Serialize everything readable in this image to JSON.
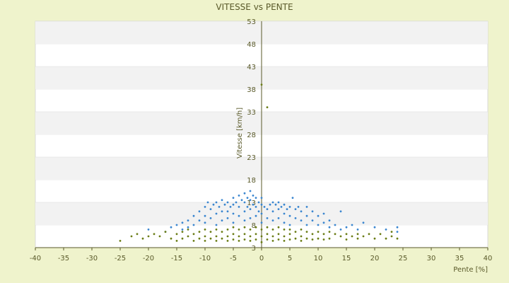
{
  "chart_data": {
    "type": "scatter",
    "title": "VITESSE vs PENTE",
    "xlabel": "Pente [%]",
    "ylabel": "Vitesse [km/h]",
    "xlim": [
      -40,
      40
    ],
    "ylim": [
      3,
      53
    ],
    "x_ticks": [
      "-40",
      "-35",
      "-30",
      "-25",
      "-20",
      "-15",
      "-10",
      "-5",
      "0",
      "5",
      "10",
      "15",
      "20",
      "25",
      "30",
      "35",
      "40"
    ],
    "y_ticks": [
      "3",
      "8",
      "13",
      "18",
      "23",
      "28",
      "33",
      "38",
      "43",
      "48",
      "53"
    ],
    "grid": "horizontal bands",
    "legend": "none",
    "colors": {
      "series_blue": "#3a86d0",
      "series_olive": "#6b7d16",
      "band": "#f2f2f2",
      "plot_bg": "#ffffff",
      "page_bg": "#eff3cc",
      "axis": "#5a5a2a"
    },
    "series": [
      {
        "color": "#3a86d0",
        "points": [
          [
            -20,
            7
          ],
          [
            -17,
            6.5
          ],
          [
            -16,
            7.5
          ],
          [
            -15,
            8
          ],
          [
            -14,
            8.5
          ],
          [
            -14,
            7
          ],
          [
            -13,
            9
          ],
          [
            -13,
            7.5
          ],
          [
            -12,
            10
          ],
          [
            -12,
            8
          ],
          [
            -11,
            11
          ],
          [
            -11,
            9
          ],
          [
            -10,
            12
          ],
          [
            -10,
            10
          ],
          [
            -10,
            8.5
          ],
          [
            -9.5,
            13
          ],
          [
            -9,
            11.5
          ],
          [
            -9,
            9.5
          ],
          [
            -8.5,
            12.5
          ],
          [
            -8,
            13
          ],
          [
            -8,
            10.5
          ],
          [
            -8,
            8
          ],
          [
            -7.5,
            12
          ],
          [
            -7,
            13.5
          ],
          [
            -7,
            11
          ],
          [
            -7,
            9
          ],
          [
            -6.5,
            12.5
          ],
          [
            -6,
            13
          ],
          [
            -6,
            11
          ],
          [
            -6,
            9.5
          ],
          [
            -5.5,
            12
          ],
          [
            -5,
            14
          ],
          [
            -5,
            12.5
          ],
          [
            -5,
            10.5
          ],
          [
            -5,
            8.5
          ],
          [
            -4.5,
            13
          ],
          [
            -4,
            14.5
          ],
          [
            -4,
            12
          ],
          [
            -4,
            10
          ],
          [
            -3.5,
            13.5
          ],
          [
            -3,
            15
          ],
          [
            -3,
            13
          ],
          [
            -3,
            11
          ],
          [
            -3,
            9
          ],
          [
            -2.5,
            14
          ],
          [
            -2.5,
            12
          ],
          [
            -2,
            15.5
          ],
          [
            -2,
            13.5
          ],
          [
            -2,
            11.5
          ],
          [
            -2,
            9.5
          ],
          [
            -1.5,
            14.5
          ],
          [
            -1.5,
            12.5
          ],
          [
            -1,
            14
          ],
          [
            -1,
            12
          ],
          [
            -1,
            10
          ],
          [
            -0.5,
            13
          ],
          [
            -0.5,
            11
          ],
          [
            0,
            14
          ],
          [
            0,
            12.5
          ],
          [
            0,
            10.5
          ],
          [
            0,
            8.5
          ],
          [
            0.5,
            12
          ],
          [
            1,
            11.5
          ],
          [
            1,
            9.5
          ],
          [
            1.5,
            12.5
          ],
          [
            2,
            13
          ],
          [
            2,
            11
          ],
          [
            2,
            9
          ],
          [
            2.5,
            12.5
          ],
          [
            3,
            13
          ],
          [
            3,
            11.5
          ],
          [
            3,
            9.5
          ],
          [
            3.5,
            12
          ],
          [
            4,
            12.5
          ],
          [
            4,
            10.5
          ],
          [
            4,
            8.5
          ],
          [
            4.5,
            11.5
          ],
          [
            5,
            12
          ],
          [
            5,
            10
          ],
          [
            5,
            8
          ],
          [
            5.5,
            14
          ],
          [
            6,
            11.5
          ],
          [
            6,
            9.5
          ],
          [
            6.5,
            12
          ],
          [
            7,
            11
          ],
          [
            7,
            9
          ],
          [
            8,
            12
          ],
          [
            8,
            10
          ],
          [
            8,
            8
          ],
          [
            9,
            11
          ],
          [
            9,
            9
          ],
          [
            10,
            10
          ],
          [
            10,
            8
          ],
          [
            11,
            10.5
          ],
          [
            11,
            8.5
          ],
          [
            12,
            9
          ],
          [
            12,
            7.5
          ],
          [
            13,
            8
          ],
          [
            14,
            11
          ],
          [
            14,
            7
          ],
          [
            15,
            7.5
          ],
          [
            16,
            8
          ],
          [
            17,
            7
          ],
          [
            18,
            8.5
          ],
          [
            20,
            7.5
          ],
          [
            22,
            7
          ],
          [
            24,
            6.5
          ],
          [
            24,
            7.5
          ]
        ]
      },
      {
        "color": "#6b7d16",
        "points": [
          [
            -25,
            4.5
          ],
          [
            -23,
            5.5
          ],
          [
            -22,
            6
          ],
          [
            -21,
            5
          ],
          [
            -20,
            5.5
          ],
          [
            -19,
            6
          ],
          [
            -18,
            5.5
          ],
          [
            -17,
            6.5
          ],
          [
            -16,
            5
          ],
          [
            -15,
            6
          ],
          [
            -15,
            4.5
          ],
          [
            -14,
            6.5
          ],
          [
            -14,
            5
          ],
          [
            -13,
            7
          ],
          [
            -13,
            5.5
          ],
          [
            -12,
            6
          ],
          [
            -12,
            4.5
          ],
          [
            -11,
            6.5
          ],
          [
            -11,
            5
          ],
          [
            -10,
            7
          ],
          [
            -10,
            5.5
          ],
          [
            -10,
            4.5
          ],
          [
            -9,
            6.5
          ],
          [
            -9,
            5
          ],
          [
            -8,
            7
          ],
          [
            -8,
            5.5
          ],
          [
            -8,
            4.5
          ],
          [
            -7,
            6.5
          ],
          [
            -7,
            5
          ],
          [
            -6,
            7
          ],
          [
            -6,
            5.5
          ],
          [
            -6,
            4.5
          ],
          [
            -5,
            7.5
          ],
          [
            -5,
            6
          ],
          [
            -5,
            4.8
          ],
          [
            -4,
            7
          ],
          [
            -4,
            5.5
          ],
          [
            -4,
            4.5
          ],
          [
            -3,
            7.5
          ],
          [
            -3,
            6
          ],
          [
            -3,
            4.8
          ],
          [
            -2,
            7
          ],
          [
            -2,
            5.5
          ],
          [
            -2,
            4.5
          ],
          [
            -1,
            7.5
          ],
          [
            -1,
            6
          ],
          [
            -1,
            4.8
          ],
          [
            0,
            39
          ],
          [
            0,
            7
          ],
          [
            0,
            5.5
          ],
          [
            0,
            4.2
          ],
          [
            1,
            34
          ],
          [
            1,
            7.5
          ],
          [
            1,
            6
          ],
          [
            1,
            4.8
          ],
          [
            2,
            7
          ],
          [
            2,
            5.5
          ],
          [
            2,
            4.5
          ],
          [
            3,
            7.5
          ],
          [
            3,
            6
          ],
          [
            3,
            4.8
          ],
          [
            4,
            7
          ],
          [
            4,
            5.5
          ],
          [
            4,
            4.5
          ],
          [
            5,
            7
          ],
          [
            5,
            6
          ],
          [
            5,
            4.8
          ],
          [
            6,
            6.5
          ],
          [
            6,
            5
          ],
          [
            7,
            7
          ],
          [
            7,
            5.5
          ],
          [
            7,
            4.5
          ],
          [
            8,
            6.5
          ],
          [
            8,
            5
          ],
          [
            9,
            6
          ],
          [
            9,
            4.8
          ],
          [
            10,
            6.5
          ],
          [
            10,
            5
          ],
          [
            11,
            6
          ],
          [
            11,
            4.8
          ],
          [
            12,
            6.5
          ],
          [
            12,
            5
          ],
          [
            13,
            6
          ],
          [
            14,
            5.5
          ],
          [
            15,
            6
          ],
          [
            15,
            4.8
          ],
          [
            16,
            5.5
          ],
          [
            17,
            6
          ],
          [
            17,
            5
          ],
          [
            18,
            5.5
          ],
          [
            19,
            6
          ],
          [
            20,
            5
          ],
          [
            21,
            6
          ],
          [
            22,
            5
          ],
          [
            23,
            6.5
          ],
          [
            23,
            5.5
          ],
          [
            24,
            5
          ]
        ]
      }
    ]
  }
}
